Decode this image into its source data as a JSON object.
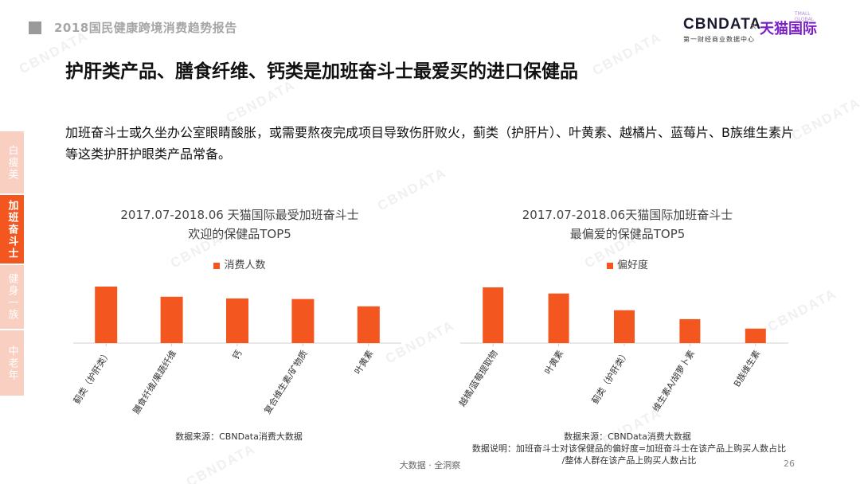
{
  "header": {
    "report_title": "2018国民健康跨境消费趋势报告",
    "logo": {
      "cbn": "CBNDATA",
      "cbn_sub": "第一财经商业数据中心",
      "cross": "×",
      "tmall": "天猫国际",
      "tmall_en": "TMALL GLOBAL"
    }
  },
  "headline": "护肝类产品、膳食纤维、钙类是加班奋斗士最爱买的进口保健品",
  "description": "加班奋斗士或久坐办公室眼睛酸胀，或需要熬夜完成项目导致伤肝败火，蓟类（护肝片）、叶黄素、越橘片、蓝莓片、B族维生素片等这类护肝护眼类产品常备。",
  "side_tabs": [
    {
      "label": "白瘦美",
      "active": false
    },
    {
      "label": "加班奋斗士",
      "active": true
    },
    {
      "label": "健身一族",
      "active": false
    },
    {
      "label": "中老年",
      "active": false
    }
  ],
  "chart_data": [
    {
      "type": "bar",
      "title_line1": "2017.07-2018.06 天猫国际最受加班奋斗士",
      "title_line2": "欢迎的保健品TOP5",
      "legend": "消费人数",
      "categories": [
        "蓟类（护肝类）",
        "膳食纤维/果蔬纤维",
        "钙",
        "复合维生素/矿物质",
        "叶黄素"
      ],
      "values": [
        100,
        82,
        79,
        78,
        65
      ],
      "ylim": [
        0,
        100
      ],
      "grid": false,
      "legend_position": "top",
      "color": "#f4561f"
    },
    {
      "type": "bar",
      "title_line1": "2017.07-2018.06天猫国际加班奋斗士",
      "title_line2": "最偏爱的保健品TOP5",
      "legend": "偏好度",
      "categories": [
        "越橘/蓝莓提取物",
        "叶黄素",
        "蓟类（护肝类）",
        "维生素A/胡萝卜素",
        "B族维生素"
      ],
      "values": [
        100,
        89,
        59,
        43,
        26
      ],
      "ylim": [
        0,
        100
      ],
      "grid": false,
      "legend_position": "top",
      "color": "#f4561f"
    }
  ],
  "notes": {
    "left_source": "数据来源：CBNData消费大数据",
    "right_source": "数据来源：CBNData消费大数据",
    "right_explain_1": "数据说明：加班奋斗士对该保健品的偏好度=加班奋斗士在该产品上购买人数占比",
    "right_explain_2": "/整体人群在该产品上购买人数占比"
  },
  "footer": {
    "text": "大数据 · 全洞察",
    "page": "26"
  },
  "watermark_text": "CBNDATA"
}
